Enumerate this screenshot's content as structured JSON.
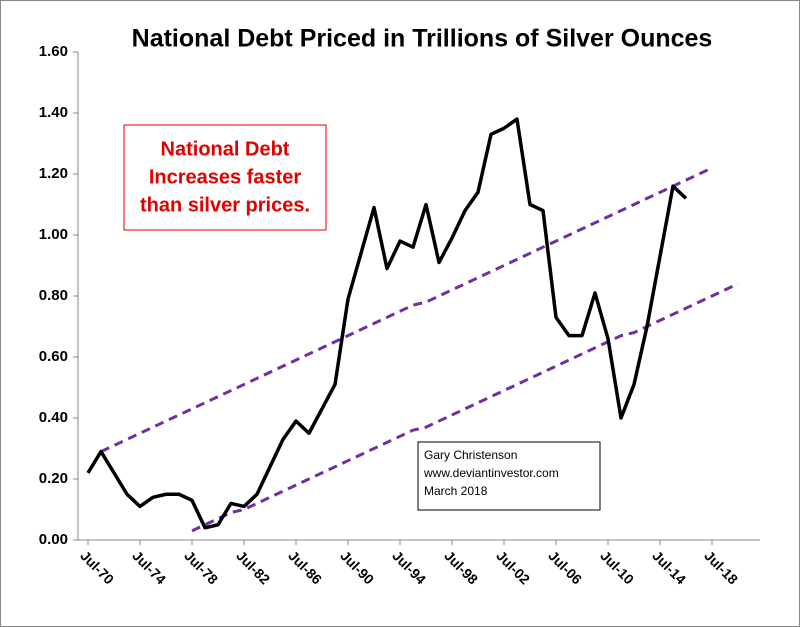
{
  "chart_data": {
    "type": "line",
    "title": "National Debt Priced in Trillions of Silver Ounces",
    "categories": [
      "Jul-70",
      null,
      null,
      null,
      "Jul-74",
      null,
      null,
      null,
      "Jul-78",
      null,
      null,
      null,
      "Jul-82",
      null,
      null,
      null,
      "Jul-86",
      null,
      null,
      null,
      "Jul-90",
      null,
      null,
      null,
      "Jul-94",
      null,
      null,
      null,
      "Jul-98",
      null,
      null,
      null,
      "Jul-02",
      null,
      null,
      null,
      "Jul-06",
      null,
      null,
      null,
      "Jul-10",
      null,
      null,
      null,
      "Jul-14",
      null,
      null,
      null,
      "Jul-18",
      null,
      null
    ],
    "series": [
      {
        "color": "#000000",
        "values": [
          0.22,
          0.29,
          0.22,
          0.15,
          0.11,
          0.14,
          0.15,
          0.15,
          0.13,
          0.04,
          0.05,
          0.12,
          0.11,
          0.15,
          0.24,
          0.33,
          0.39,
          0.35,
          0.43,
          0.51,
          0.79,
          0.94,
          1.09,
          0.89,
          0.98,
          0.96,
          1.1,
          0.91,
          0.99,
          1.08,
          1.14,
          1.33,
          1.35,
          1.38,
          1.1,
          1.08,
          0.73,
          0.67,
          0.67,
          0.81,
          0.66,
          0.4,
          0.51,
          0.7,
          0.93,
          1.16,
          1.12,
          null,
          null,
          null,
          null
        ]
      }
    ],
    "trend_lines": [
      {
        "color": "#7030a0",
        "values": [
          null,
          0.29,
          0.31,
          0.33,
          0.35,
          0.37,
          0.39,
          0.41,
          0.43,
          0.45,
          0.47,
          0.49,
          0.51,
          0.53,
          0.55,
          0.57,
          0.59,
          0.61,
          0.63,
          0.65,
          0.67,
          0.69,
          0.71,
          0.73,
          0.75,
          0.77,
          0.78,
          0.8,
          0.82,
          0.84,
          0.86,
          0.88,
          0.9,
          0.92,
          0.94,
          0.96,
          0.98,
          1.0,
          1.02,
          1.04,
          1.06,
          1.08,
          1.1,
          1.12,
          1.14,
          1.16,
          1.18,
          1.2,
          1.22,
          null,
          null
        ]
      },
      {
        "color": "#7030a0",
        "values": [
          null,
          null,
          null,
          null,
          null,
          null,
          null,
          null,
          0.03,
          0.05,
          0.07,
          0.09,
          0.1,
          0.12,
          0.14,
          0.16,
          0.18,
          0.2,
          0.22,
          0.24,
          0.26,
          0.28,
          0.3,
          0.32,
          0.34,
          0.36,
          0.37,
          0.39,
          0.41,
          0.43,
          0.45,
          0.47,
          0.49,
          0.51,
          0.53,
          0.55,
          0.57,
          0.59,
          0.61,
          0.63,
          0.65,
          0.67,
          0.68,
          0.7,
          0.72,
          0.74,
          0.76,
          0.78,
          0.8,
          0.82,
          0.84
        ]
      }
    ],
    "ylim": [
      0,
      1.6
    ],
    "yticks": [
      {
        "value": 0,
        "label": "0.00"
      },
      {
        "value": 0.2,
        "label": "0.20"
      },
      {
        "value": 0.4,
        "label": "0.40"
      },
      {
        "value": 0.6,
        "label": "0.60"
      },
      {
        "value": 0.8,
        "label": "0.80"
      },
      {
        "value": 1.0,
        "label": "1.00"
      },
      {
        "value": 1.2,
        "label": "1.20"
      },
      {
        "value": 1.4,
        "label": "1.40"
      },
      {
        "value": 1.6,
        "label": "1.60"
      }
    ],
    "grid": false,
    "annotations": [
      {
        "lines": [
          "National Debt",
          "Increases faster",
          "than silver prices."
        ],
        "color": "#e00000"
      },
      {
        "lines": [
          "Gary Christenson",
          "www.deviantinvestor.com",
          "March 2018"
        ],
        "color": "#000000"
      }
    ]
  }
}
